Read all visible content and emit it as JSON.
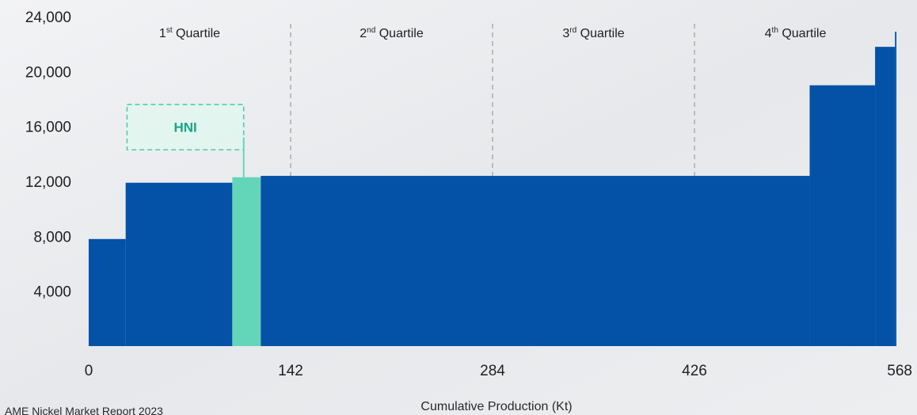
{
  "chart_data": {
    "type": "bar",
    "xlabel": "Cumulative Production (Kt)",
    "ylabel": "",
    "xlim": [
      0,
      568
    ],
    "ylim": [
      0,
      24000
    ],
    "x_ticks": [
      0,
      142,
      284,
      426,
      568
    ],
    "x_tick_labels": [
      "0",
      "142",
      "284",
      "426",
      "568"
    ],
    "y_ticks": [
      4000,
      8000,
      12000,
      16000,
      20000,
      24000
    ],
    "y_tick_labels": [
      "4,000",
      "8,000",
      "12,000",
      "16,000",
      "20,000",
      "24,000"
    ],
    "quartile_dividers": [
      142,
      284,
      426
    ],
    "quartiles": [
      {
        "base": "1",
        "suffix": "st",
        "word": "Quartile"
      },
      {
        "base": "2",
        "suffix": "nd",
        "word": "Quartile"
      },
      {
        "base": "3",
        "suffix": "rd",
        "word": "Quartile"
      },
      {
        "base": "4",
        "suffix": "th",
        "word": "Quartile"
      }
    ],
    "bars": [
      {
        "x0": 0,
        "x1": 26,
        "value": 7800,
        "highlight": false
      },
      {
        "x0": 26,
        "x1": 101,
        "value": 11900,
        "highlight": false
      },
      {
        "x0": 101,
        "x1": 121,
        "value": 12300,
        "highlight": true
      },
      {
        "x0": 121,
        "x1": 507,
        "value": 12400,
        "highlight": false
      },
      {
        "x0": 507,
        "x1": 553,
        "value": 19000,
        "highlight": false
      },
      {
        "x0": 553,
        "x1": 567,
        "value": 21800,
        "highlight": false
      },
      {
        "x0": 567,
        "x1": 568,
        "value": 22900,
        "highlight": false
      }
    ],
    "annotation": {
      "label": "HNI",
      "x": 109,
      "y_top": 15200,
      "box_x0": 27,
      "box_x1": 109,
      "box_y0": 14300,
      "box_y1": 17600
    },
    "colors": {
      "bar": "#0352a8",
      "highlight": "#63d6ba",
      "annotation_text": "#19a585",
      "annotation_border": "#4ccea9",
      "annotation_fill": "#e2f6ef",
      "divider": "#a9acb1"
    }
  },
  "source_text": "AME Nickel Market Report 2023"
}
